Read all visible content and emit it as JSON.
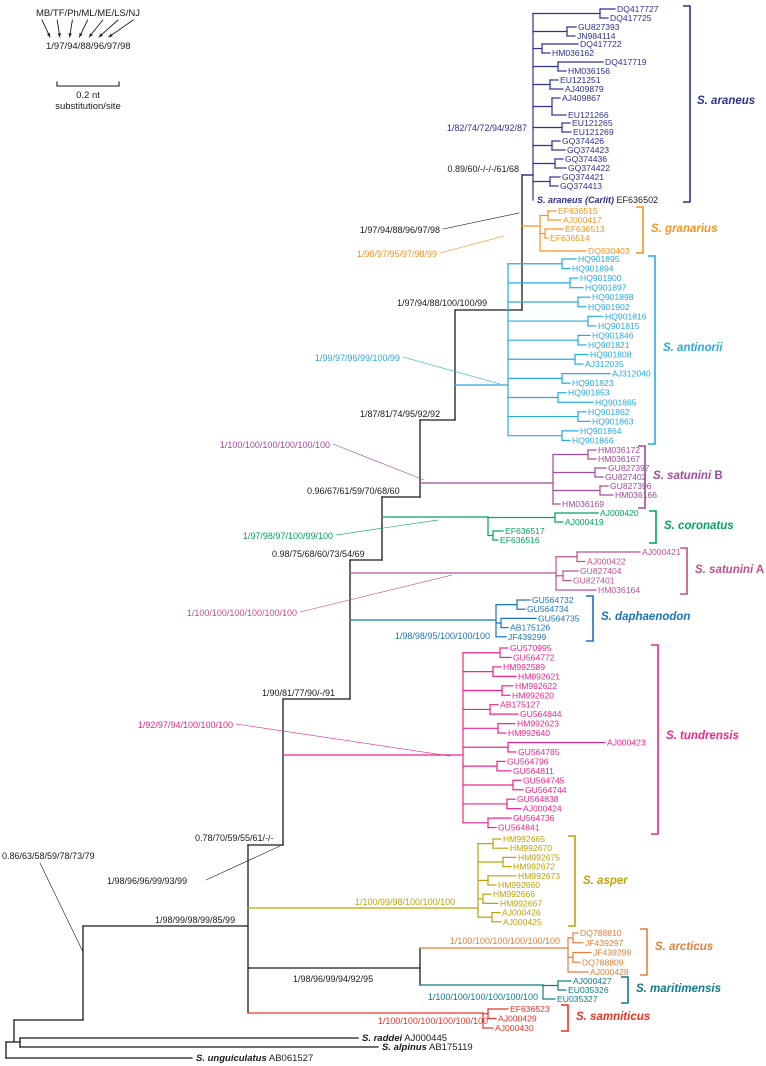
{
  "legend": {
    "methods": "MB/TF/Ph/ML/ME/LS/NJ",
    "example_support": "1/97/94/88/96/97/98",
    "scale_value": "0.2 nt",
    "scale_unit": "substitution/site"
  },
  "clades": [
    {
      "id": "araneus",
      "name": "S. araneus",
      "suffix": "",
      "color": "#2E3192",
      "tips": [
        "DQ417727",
        "DQ417725",
        "GU827393",
        "JN984114",
        "DQ417722",
        "HM036162",
        "DQ417719",
        "HM036156",
        "EU121251",
        "AJ409879",
        "AJ409867",
        "EU121266",
        "EU121265",
        "EU121269",
        "GQ374426",
        "GQ374423",
        "GQ374436",
        "GQ374422",
        "GQ374421",
        "GQ374413"
      ]
    },
    {
      "id": "granarius",
      "name": "S. granarius",
      "suffix": "",
      "color": "#F7941E",
      "tips": [
        "EF636515",
        "AJ000417",
        "EF636513",
        "EF636514",
        "DQ630403"
      ]
    },
    {
      "id": "antinorii",
      "name": "S. antinorii",
      "suffix": "",
      "color": "#29ABE2",
      "tips": [
        "HQ901895",
        "HQ901894",
        "HQ901900",
        "HQ901897",
        "HQ901898",
        "HQ901902",
        "HQ901816",
        "HQ901815",
        "HQ901846",
        "HQ901821",
        "HQ901808",
        "AJ312035",
        "AJ312040",
        "HQ901823",
        "HQ901853",
        "HQ901865",
        "HQ901862",
        "HQ901863",
        "HQ901864",
        "HQ901866"
      ]
    },
    {
      "id": "satunini-b",
      "name": "S. satunini",
      "suffix": " B",
      "color": "#9E4B9B",
      "tips": [
        "HM036172",
        "HM036167",
        "GU827397",
        "GU827402",
        "GU827396",
        "HM036166",
        "HM036169"
      ]
    },
    {
      "id": "coronatus",
      "name": "S. coronatus",
      "suffix": "",
      "color": "#00A55E",
      "tips": [
        "AJ000420",
        "AJ000419",
        "EF636517",
        "EF636516"
      ]
    },
    {
      "id": "satunini-a",
      "name": "S. satunini",
      "suffix": " A",
      "color": "#C05090",
      "tips": [
        "AJ000421",
        "AJ000422",
        "GU827404",
        "GU827401",
        "HM036164"
      ]
    },
    {
      "id": "daphaenodon",
      "name": "S. daphaenodon",
      "suffix": "",
      "color": "#1B75BC",
      "tips": [
        "GU564732",
        "GU564734",
        "GU564735",
        "AB175126",
        "JF439299"
      ]
    },
    {
      "id": "tundrensis",
      "name": "S. tundrensis",
      "suffix": "",
      "color": "#EC268C",
      "tips": [
        "GU570995",
        "GU564772",
        "HM992589",
        "HM992621",
        "HM992622",
        "HM992620",
        "AB175127",
        "GU564844",
        "HM992623",
        "HM992640",
        "AJ000423",
        "GU564785",
        "GU564796",
        "GU564811",
        "GU564745",
        "GU564744",
        "GU564838",
        "AJ000424",
        "GU564736",
        "GU564841"
      ]
    },
    {
      "id": "asper",
      "name": "S. asper",
      "suffix": "",
      "color": "#BFA30A",
      "tips": [
        "HM992665",
        "HM992670",
        "HM992675",
        "HM992672",
        "HM992673",
        "HM992660",
        "HM992666",
        "HM992667",
        "AJ000426",
        "AJ000425"
      ]
    },
    {
      "id": "arcticus",
      "name": "S. arcticus",
      "suffix": "",
      "color": "#E2813B",
      "tips": [
        "DQ788810",
        "JF439297",
        "JF439298",
        "DQ788809",
        "AJ000428"
      ]
    },
    {
      "id": "maritimensis",
      "name": "S. maritimensis",
      "suffix": "",
      "color": "#0E7C87",
      "tips": [
        "AJ000427",
        "EU035326",
        "EU035327"
      ]
    },
    {
      "id": "samniticus",
      "name": "S. samniticus",
      "suffix": "",
      "color": "#E93528",
      "tips": [
        "EF636523",
        "AJ000429",
        "AJ000430"
      ]
    }
  ],
  "carlit": {
    "name": "S. araneus (Carlit)",
    "accession": "EF636502"
  },
  "outgroups": [
    {
      "name": "S. raddei",
      "accession": "AJ000445"
    },
    {
      "name": "S. alpinus",
      "accession": "AB175119"
    },
    {
      "name": "S. unguiculatus",
      "accession": "AB061527"
    }
  ],
  "supports": [
    {
      "text": "1/82/74/72/94/92/87",
      "color": "#2E3192"
    },
    {
      "text": "0.89/60/-/-/-/61/68",
      "color": "#1A1A1A"
    },
    {
      "text": "1/97/94/88/96/97/98",
      "color": "#1A1A1A"
    },
    {
      "text": "1/98/97/95/97/98/99",
      "color": "#F7941E"
    },
    {
      "text": "1/97/94/88/100/100/99",
      "color": "#1A1A1A"
    },
    {
      "text": "1/99/97/96/99/100/99",
      "color": "#29ABE2"
    },
    {
      "text": "1/87/81/74/95/92/92",
      "color": "#1A1A1A"
    },
    {
      "text": "1/100/100/100/100/100/100",
      "color": "#9E4B9B"
    },
    {
      "text": "0.96/67/61/59/70/68/60",
      "color": "#1A1A1A"
    },
    {
      "text": "1/97/98/97/100/99/100",
      "color": "#00A55E"
    },
    {
      "text": "0.98/75/68/60/73/54/69",
      "color": "#1A1A1A"
    },
    {
      "text": "1/100/100/100/100/100/100",
      "color": "#C05090"
    },
    {
      "text": "1/98/98/95/100/100/100",
      "color": "#1B75BC"
    },
    {
      "text": "1/90/81/77/90/-/91",
      "color": "#1A1A1A"
    },
    {
      "text": "1/92/97/94/100/100/100",
      "color": "#EC268C"
    },
    {
      "text": "0.78/70/59/55/61/-/-",
      "color": "#1A1A1A"
    },
    {
      "text": "0.86/63/58/59/78/73/79",
      "color": "#1A1A1A"
    },
    {
      "text": "1/98/96/96/99/93/99",
      "color": "#1A1A1A"
    },
    {
      "text": "1/100/99/98/100/100/100",
      "color": "#BFA30A"
    },
    {
      "text": "1/98/99/98/99/85/99",
      "color": "#1A1A1A"
    },
    {
      "text": "1/100/100/100/100/100/100",
      "color": "#E2813B"
    },
    {
      "text": "1/98/96/99/94/92/95",
      "color": "#1A1A1A"
    },
    {
      "text": "1/100/100/100/100/100/100",
      "color": "#0E7C87"
    },
    {
      "text": "1/100/100/100/100/100/100",
      "color": "#E93528"
    }
  ]
}
